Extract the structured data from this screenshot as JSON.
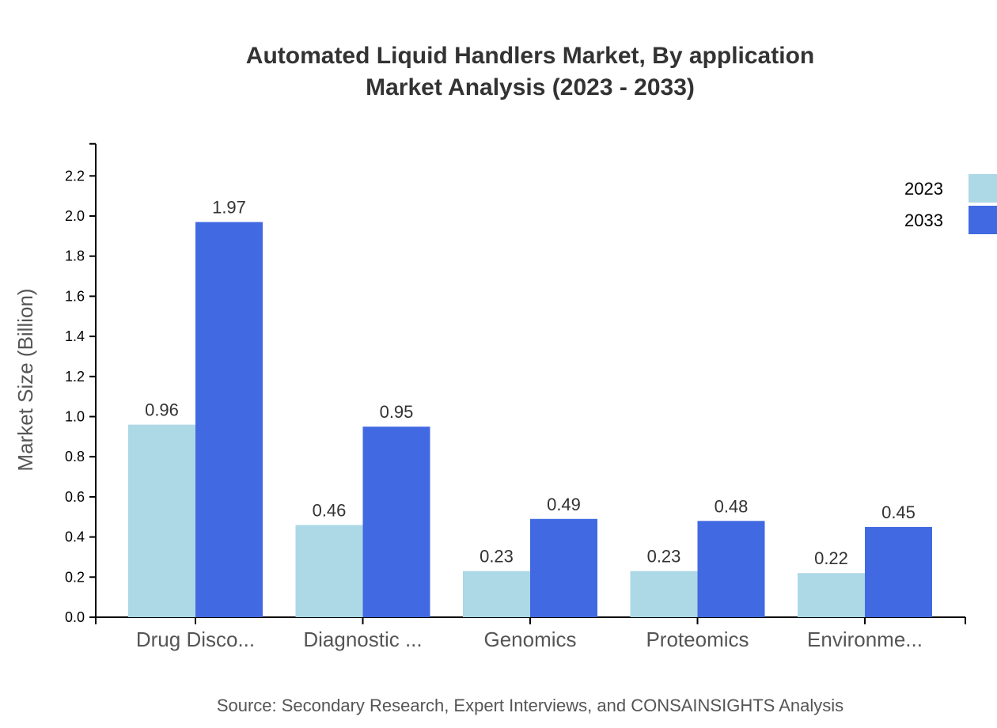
{
  "chart_data": {
    "type": "bar",
    "title": "Automated Liquid Handlers Market, By application",
    "subtitle": "Market Analysis (2023 - 2033)",
    "xlabel": "",
    "ylabel": "Market Size (Billion)",
    "ylim": [
      0,
      2.36
    ],
    "yticks": [
      "0.0",
      "0.2",
      "0.4",
      "0.6",
      "0.8",
      "1.0",
      "1.2",
      "1.4",
      "1.6",
      "1.8",
      "2.0",
      "2.2"
    ],
    "categories": [
      "Drug Disco...",
      "Diagnostic ...",
      "Genomics",
      "Proteomics",
      "Environme..."
    ],
    "series": [
      {
        "name": "2023",
        "color": "#ADD8E6",
        "values": [
          0.96,
          0.46,
          0.23,
          0.23,
          0.22
        ]
      },
      {
        "name": "2033",
        "color": "#4169E1",
        "values": [
          1.97,
          0.95,
          0.49,
          0.48,
          0.45
        ]
      }
    ],
    "legend_position": "top-right",
    "grid": false,
    "source": "Source: Secondary Research, Expert Interviews, and CONSAINSIGHTS Analysis"
  }
}
